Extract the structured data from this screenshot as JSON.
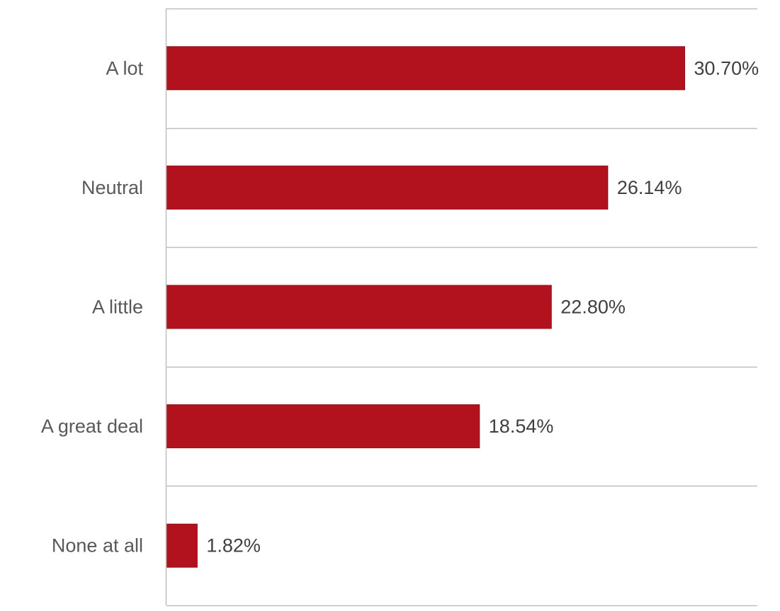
{
  "chart_data": {
    "type": "bar",
    "orientation": "horizontal",
    "categories": [
      "A lot",
      "Neutral",
      "A little",
      "A great deal",
      "None at all"
    ],
    "values": [
      30.7,
      26.14,
      22.8,
      18.54,
      1.82
    ],
    "value_labels": [
      "30.70%",
      "26.14%",
      "22.80%",
      "18.54%",
      "1.82%"
    ],
    "unit": "%",
    "xlim": [
      0,
      35
    ],
    "grid": true,
    "legend": "none",
    "title": "",
    "xlabel": "",
    "ylabel": "",
    "colors": {
      "bar": "#B2121E",
      "bar_edge": "#8E0E18",
      "grid": "#BFBFBF",
      "axis": "#BFBFBF"
    }
  }
}
